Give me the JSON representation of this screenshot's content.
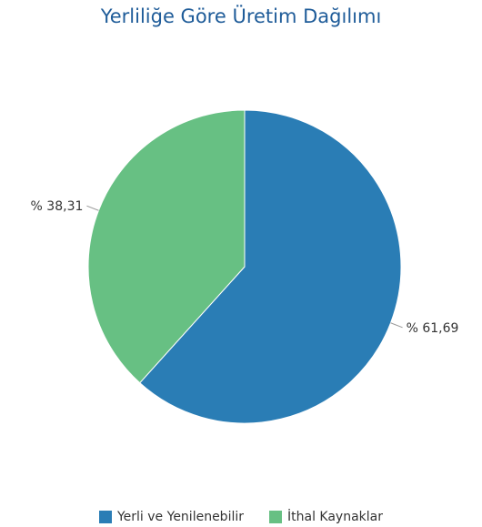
{
  "chart_data": {
    "type": "pie",
    "title": "Yerliliğe Göre Üretim Dağılımı",
    "slices": [
      {
        "name": "Yerli ve Yenilenebilir",
        "value": 61.69,
        "label": "% 61,69",
        "color": "#2a7db5"
      },
      {
        "name": "İthal Kaynaklar",
        "value": 38.31,
        "label": "% 38,31",
        "color": "#67c083"
      }
    ],
    "legend_position": "bottom"
  }
}
